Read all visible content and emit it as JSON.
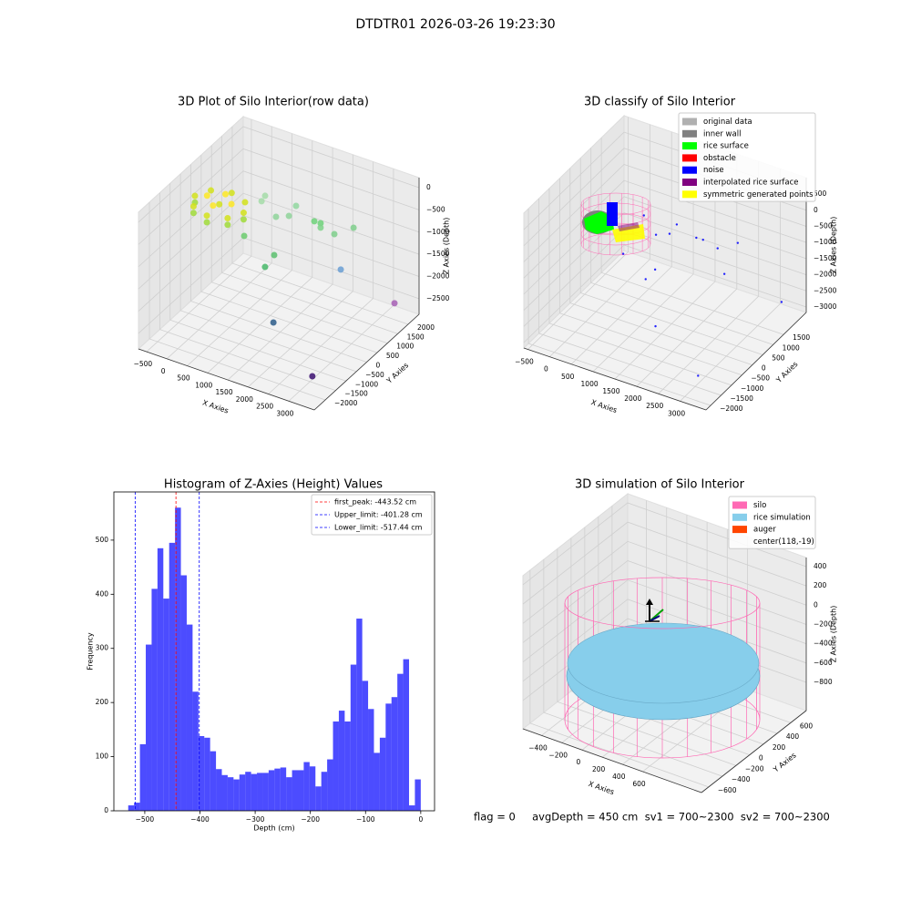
{
  "title": "DTDTR01 2026-03-26 19:23:30",
  "footer": "flag = 0     avgDepth = 450 cm  sv1 = 700~2300  sv2 = 700~2300",
  "chart_data": [
    {
      "type": "scatter3d",
      "title": "3D Plot of Silo Interior(row data)",
      "xlabel": "X Axies",
      "ylabel": "Y Axies",
      "zlabel": "Z Axies (Depth)",
      "xlim": [
        -700,
        3630
      ],
      "ylim": [
        -2530,
        2530
      ],
      "zlim": [
        -2850,
        225
      ],
      "xticks": [
        {
          "value": -500,
          "label": "−500"
        },
        0,
        500,
        1000,
        1500,
        2000,
        2500,
        3000
      ],
      "yticks": [
        {
          "value": -2000,
          "label": "−2000"
        },
        {
          "value": -1500,
          "label": "−1500"
        },
        {
          "value": -1000,
          "label": "−1000"
        },
        {
          "value": -500,
          "label": "−500"
        },
        0,
        500,
        1000,
        1500,
        2000
      ],
      "zticks": [
        {
          "value": -2500,
          "label": "−2500"
        },
        {
          "value": -2000,
          "label": "−2000"
        },
        {
          "value": -1500,
          "label": "−1500"
        },
        {
          "value": -1000,
          "label": "−1000"
        },
        {
          "value": -500,
          "label": "−500"
        },
        0
      ],
      "series": [
        {
          "x": [
            3240,
            3540,
            1930,
            2357,
            1390,
            1495,
            845,
            2245,
            2550,
            1960,
            1810,
            1960,
            1357,
            1340,
            1127,
            695,
            695,
            600,
            -600,
            0,
            420,
            -420,
            0,
            420,
            -420,
            0,
            600,
            -600,
            0,
            420,
            -420,
            300,
            -300,
            0,
            0
          ],
          "y": [
            -1860,
            1520,
            -1170,
            1245,
            -515,
            -280,
            -455,
            1155,
            1485,
            1050,
            1040,
            1050,
            1047,
            735,
            530,
            850,
            680,
            0,
            0,
            -600,
            -420,
            -420,
            600,
            420,
            420,
            0,
            0,
            0,
            -600,
            -420,
            -420,
            0,
            0,
            300,
            -300
          ],
          "z": [
            -2500,
            -2200,
            -2000,
            -1700,
            -1200,
            -1000,
            -700,
            -900,
            -800,
            -700,
            -700,
            -800,
            -500,
            -600,
            -600,
            -400,
            -450,
            -600,
            -600,
            -600,
            -600,
            -600,
            -450,
            -450,
            -450,
            -450,
            -450,
            -450,
            -450,
            -450,
            -450,
            -350,
            -350,
            -350,
            -350
          ],
          "colors": [
            "#3b0f70",
            "#a75fb5",
            "#2c5c8a",
            "#6a9fd4",
            "#48b86a",
            "#5cc06f",
            "#6ccb6e",
            "#7fcf8c",
            "#7fcf8c",
            "#6fd27a",
            "#6fd27a",
            "#7fd38a",
            "#92d7a0",
            "#8fd49a",
            "#8fd49a",
            "#a5dca8",
            "#a5dca8",
            "#a0da39",
            "#a0da39",
            "#a0da39",
            "#a0da39",
            "#a0da39",
            "#d2e21b",
            "#d2e21b",
            "#d2e21b",
            "#d2e21b",
            "#d2e21b",
            "#d2e21b",
            "#d2e21b",
            "#d2e21b",
            "#d2e21b",
            "#fde725",
            "#fde725",
            "#fde725",
            "#fde725"
          ]
        }
      ]
    },
    {
      "type": "scatter3d",
      "title": "3D classify of Silo Interior",
      "xlabel": "X Axies",
      "ylabel": "Y Axies",
      "zlabel": "Z Axies (Depth)",
      "xlim": [
        -594,
        3596
      ],
      "ylim": [
        -2222,
        2588
      ],
      "zlim": [
        -3170,
        1010
      ],
      "xticks": [
        {
          "value": -500,
          "label": "−500"
        },
        0,
        500,
        1000,
        1500,
        2000,
        2500,
        3000
      ],
      "yticks": [
        {
          "value": -2000,
          "label": "−2000"
        },
        {
          "value": -1500,
          "label": "−1500"
        },
        {
          "value": -1000,
          "label": "−1000"
        },
        {
          "value": -500,
          "label": "−500"
        },
        0,
        500,
        1000,
        1500
      ],
      "zticks": [
        {
          "value": -3000,
          "label": "−3000"
        },
        {
          "value": -2500,
          "label": "−2500"
        },
        {
          "value": -2000,
          "label": "−2000"
        },
        {
          "value": -1500,
          "label": "−1500"
        },
        {
          "value": -1000,
          "label": "−1000"
        },
        {
          "value": -500,
          "label": "−500"
        },
        0,
        500
      ],
      "legend": [
        {
          "label": "original data",
          "color": "#b0b0b0"
        },
        {
          "label": "inner wall",
          "color": "#808080"
        },
        {
          "label": "rice surface",
          "color": "#00ff00"
        },
        {
          "label": "obstacle",
          "color": "#ff0000"
        },
        {
          "label": "noise",
          "color": "#0000ff"
        },
        {
          "label": "interpolated rice surface",
          "color": "#800080"
        },
        {
          "label": "symmetric generated points",
          "color": "#ffff00"
        }
      ],
      "series": [
        {
          "color": "#0000ff",
          "x": [
            3240,
            3540,
            1930,
            2357,
            1390,
            1495,
            845,
            2245,
            2550,
            1960,
            1810,
            1357,
            1340,
            1127,
            695
          ],
          "y": [
            -1860,
            1520,
            -1170,
            1245,
            -515,
            -280,
            -455,
            1155,
            1485,
            1050,
            1040,
            1047,
            735,
            530,
            850
          ],
          "z": [
            -2500,
            -2200,
            -2000,
            -1700,
            -1200,
            -1000,
            -700,
            -900,
            -800,
            -700,
            -700,
            -500,
            -600,
            -600,
            -400
          ]
        }
      ]
    },
    {
      "type": "histogram",
      "title": "Histogram of Z-Axies (Height) Values",
      "xlabel": "Depth (cm)",
      "ylabel": "Frequency",
      "color": "#0000ff",
      "alpha": 0.7,
      "xlim": [
        -556,
        25
      ],
      "ylim": [
        0,
        589
      ],
      "xticks": [
        {
          "value": -500,
          "label": "−500"
        },
        {
          "value": -400,
          "label": "−400"
        },
        {
          "value": -300,
          "label": "−300"
        },
        {
          "value": -200,
          "label": "−200"
        },
        {
          "value": -100,
          "label": "−100"
        },
        0
      ],
      "yticks": [
        0,
        100,
        200,
        300,
        400,
        500
      ],
      "bins": [
        -530,
        -519.4,
        -508.8,
        -498.2,
        -487.6,
        -477,
        -466.4,
        -455.8,
        -445.2,
        -434.6,
        -424,
        -413.4,
        -402.8,
        -392.2,
        -381.6,
        -371,
        -360.4,
        -349.8,
        -339.2,
        -328.6,
        -318,
        -307.4,
        -296.8,
        -286.2,
        -275.6,
        -265,
        -254.4,
        -243.8,
        -233.2,
        -222.6,
        -212,
        -201.4,
        -190.8,
        -180.2,
        -169.6,
        -159,
        -148.4,
        -137.8,
        -127.2,
        -116.6,
        -106,
        -95.4,
        -84.8,
        -74.2,
        -63.6,
        -53,
        -42.4,
        -31.8,
        -21.2,
        -10.6,
        0
      ],
      "values": [
        10,
        15,
        123,
        307,
        410,
        485,
        392,
        495,
        560,
        435,
        344,
        220,
        138,
        135,
        110,
        77,
        66,
        62,
        58,
        67,
        72,
        68,
        70,
        70,
        75,
        78,
        80,
        62,
        75,
        75,
        90,
        82,
        45,
        72,
        95,
        165,
        185,
        165,
        270,
        355,
        240,
        188,
        107,
        135,
        198,
        210,
        253,
        280,
        10,
        58
      ],
      "lines": [
        {
          "label": "first_peak: -443.52 cm",
          "value": -443.52,
          "color": "#ff0000"
        },
        {
          "label": "Upper_limit: -401.28 cm",
          "value": -401.28,
          "color": "#0000ff"
        },
        {
          "label": "Lower_limit: -517.44 cm",
          "value": -517.44,
          "color": "#0000ff"
        }
      ]
    },
    {
      "type": "surface3d",
      "title": "3D simulation of Silo Interior",
      "xlabel": "X Axies",
      "ylabel": "Y Axies",
      "zlabel": "Z Axies (Depth)",
      "xlim": [
        -585,
        1181
      ],
      "ylim": [
        -705,
        828
      ],
      "zlim": [
        -1093,
        494
      ],
      "xticks": [
        {
          "value": -400,
          "label": "−400"
        },
        {
          "value": -200,
          "label": "−200"
        },
        0,
        200,
        400,
        600
      ],
      "yticks": [
        {
          "value": -600,
          "label": "−600"
        },
        {
          "value": -400,
          "label": "−400"
        },
        {
          "value": -200,
          "label": "−200"
        },
        0,
        200,
        400,
        600
      ],
      "zticks": [
        {
          "value": -800,
          "label": "−800"
        },
        {
          "value": -600,
          "label": "−600"
        },
        {
          "value": -400,
          "label": "−400"
        },
        {
          "value": -200,
          "label": "−200"
        },
        0,
        200,
        400
      ],
      "legend": [
        {
          "label": "silo",
          "color": "#ff69b4"
        },
        {
          "label": "rice simulation",
          "color": "#87ceeb"
        },
        {
          "label": "auger",
          "color": "#ff4500"
        },
        {
          "label": "center(118,-19)"
        }
      ]
    }
  ]
}
